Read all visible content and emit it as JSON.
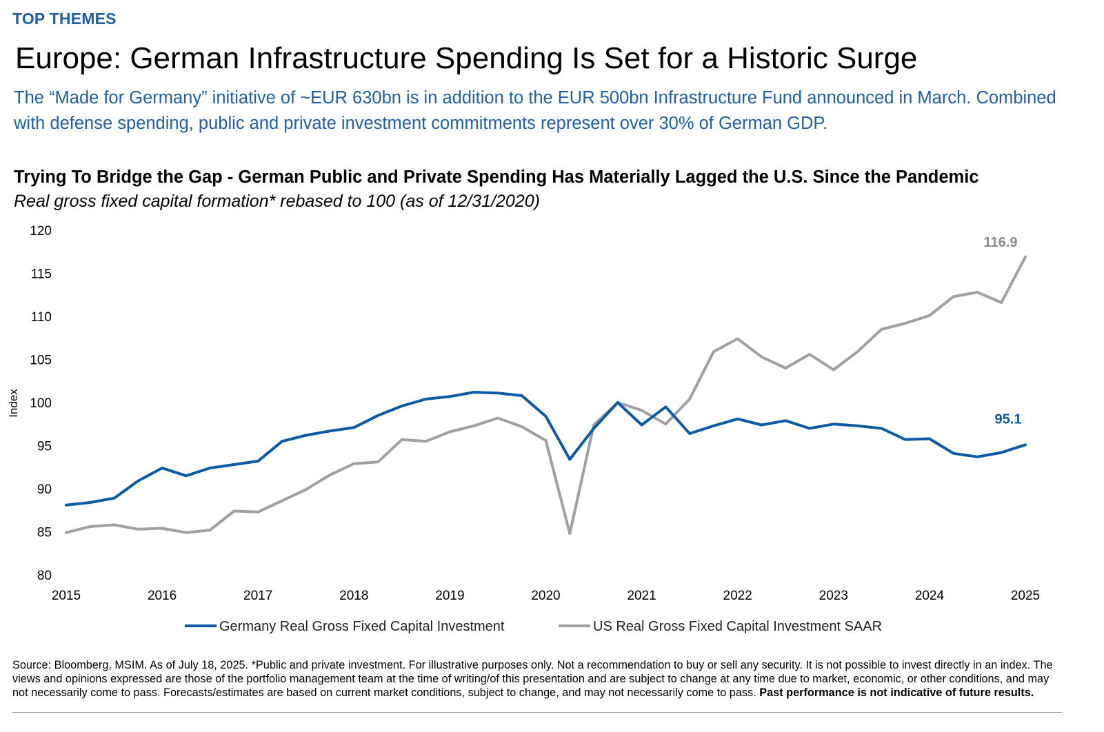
{
  "header": {
    "eyebrow": "TOP THEMES",
    "headline": "Europe: German Infrastructure Spending Is Set for a Historic Surge",
    "subtitle": "The “Made for Germany” initiative of ~EUR 630bn is in addition to the EUR 500bn Infrastructure Fund announced in March. Combined with defense spending, public and private investment commitments represent over 30% of German GDP."
  },
  "colors": {
    "accent": "#1f5fa8",
    "germany": "#0a5aa6",
    "us": "#a0a0a4",
    "us_label": "#8c8c90"
  },
  "chart_data": {
    "type": "line",
    "title": "Trying To Bridge the Gap - German Public and Private Spending Has Materially Lagged the U.S. Since the Pandemic",
    "subtitle": "Real gross fixed capital formation* rebased to 100 (as of 12/31/2020)",
    "ylabel": "Index",
    "ylim": [
      80,
      120
    ],
    "yticks": [
      "80",
      "85",
      "90",
      "95",
      "100",
      "105",
      "110",
      "115",
      "120"
    ],
    "xlim": [
      2015,
      2025
    ],
    "xticks": [
      "2015",
      "2016",
      "2017",
      "2018",
      "2019",
      "2020",
      "2021",
      "2022",
      "2023",
      "2024",
      "2025"
    ],
    "grid": false,
    "legend_position": "bottom",
    "series": [
      {
        "name": "Germany Real Gross Fixed Capital Investment",
        "color": "#0a5aa6",
        "end_label": "95.1",
        "x": [
          2015.0,
          2015.25,
          2015.5,
          2015.75,
          2016.0,
          2016.25,
          2016.5,
          2016.75,
          2017.0,
          2017.25,
          2017.5,
          2017.75,
          2018.0,
          2018.25,
          2018.5,
          2018.75,
          2019.0,
          2019.25,
          2019.5,
          2019.75,
          2020.0,
          2020.25,
          2020.5,
          2020.75,
          2021.0,
          2021.25,
          2021.5,
          2021.75,
          2022.0,
          2022.25,
          2022.5,
          2022.75,
          2023.0,
          2023.25,
          2023.5,
          2023.75,
          2024.0,
          2024.25,
          2024.5,
          2024.75,
          2025.0
        ],
        "y": [
          88.1,
          88.4,
          88.9,
          90.9,
          92.4,
          91.5,
          92.4,
          92.8,
          93.2,
          95.5,
          96.2,
          96.7,
          97.1,
          98.5,
          99.6,
          100.4,
          100.7,
          101.2,
          101.1,
          100.8,
          98.4,
          93.4,
          97.0,
          100.0,
          97.4,
          99.5,
          96.4,
          97.3,
          98.1,
          97.4,
          97.9,
          97.0,
          97.5,
          97.3,
          97.0,
          95.7,
          95.8,
          94.1,
          93.7,
          94.2,
          95.1
        ]
      },
      {
        "name": "US Real Gross Fixed Capital Investment SAAR",
        "color": "#a0a0a4",
        "end_label": "116.9",
        "x": [
          2015.0,
          2015.25,
          2015.5,
          2015.75,
          2016.0,
          2016.25,
          2016.5,
          2016.75,
          2017.0,
          2017.25,
          2017.5,
          2017.75,
          2018.0,
          2018.25,
          2018.5,
          2018.75,
          2019.0,
          2019.25,
          2019.5,
          2019.75,
          2020.0,
          2020.25,
          2020.5,
          2020.75,
          2021.0,
          2021.25,
          2021.5,
          2021.75,
          2022.0,
          2022.25,
          2022.5,
          2022.75,
          2023.0,
          2023.25,
          2023.5,
          2023.75,
          2024.0,
          2024.25,
          2024.5,
          2024.75,
          2025.0
        ],
        "y": [
          84.9,
          85.6,
          85.8,
          85.3,
          85.4,
          84.9,
          85.2,
          87.4,
          87.3,
          88.6,
          89.9,
          91.6,
          92.9,
          93.1,
          95.7,
          95.5,
          96.6,
          97.3,
          98.2,
          97.2,
          95.6,
          84.8,
          97.4,
          100.0,
          99.1,
          97.5,
          100.4,
          105.9,
          107.4,
          105.3,
          104.0,
          105.6,
          103.8,
          105.9,
          108.5,
          109.2,
          110.1,
          112.3,
          112.8,
          111.6,
          116.9
        ]
      }
    ]
  },
  "footnote": {
    "text": "Source: Bloomberg, MSIM. As of July 18, 2025. *Public and private investment. For illustrative purposes only. Not a recommendation to buy or sell any security. It is not possible to invest directly in an index. The views and opinions expressed are those of the portfolio management team at the time of writing/of this presentation and are subject to change at any time due to market, economic, or other conditions, and may not necessarily come to pass.  Forecasts/estimates are based on current market conditions, subject to change, and may not necessarily come to pass. ",
    "bold": "Past performance is not indicative of future results."
  }
}
